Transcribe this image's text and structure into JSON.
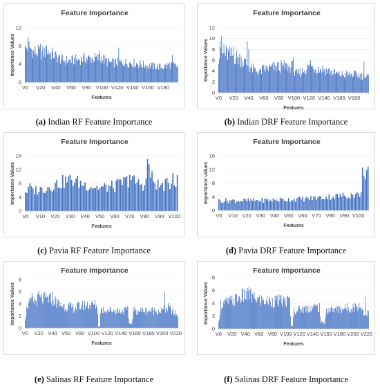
{
  "panels": [
    {
      "caption_letter": "(a)",
      "caption_text": "Indian RF Feature Importance",
      "chart_data": {
        "type": "bar",
        "title": "Feature Importance",
        "xlabel": "Features",
        "ylabel": "Importance Values",
        "ylim": [
          0,
          12
        ],
        "yticks": [
          "0",
          "4",
          "8",
          "12"
        ],
        "xticks": [
          "V0",
          "V20",
          "V40",
          "V60",
          "V80",
          "V100",
          "V120",
          "V140",
          "V160",
          "V180"
        ],
        "n_features": 200,
        "color": "#4472C4",
        "trend": [
          [
            0,
            7.5
          ],
          [
            4,
            8.5
          ],
          [
            10,
            7
          ],
          [
            20,
            6.8
          ],
          [
            30,
            7
          ],
          [
            40,
            6
          ],
          [
            50,
            5
          ],
          [
            60,
            5
          ],
          [
            80,
            5.5
          ],
          [
            100,
            5.5
          ],
          [
            110,
            4.5
          ],
          [
            120,
            4.5
          ],
          [
            140,
            4.5
          ],
          [
            160,
            3.8
          ],
          [
            180,
            3.5
          ],
          [
            190,
            4.2
          ],
          [
            199,
            3.5
          ]
        ],
        "peaks": [
          [
            4,
            10
          ],
          [
            5,
            9
          ],
          [
            20,
            8.5
          ],
          [
            28,
            8
          ],
          [
            97,
            7
          ],
          [
            122,
            7.5
          ],
          [
            192,
            6
          ]
        ]
      }
    },
    {
      "caption_letter": "(b)",
      "caption_text": "Indian DRF Feature Importance",
      "chart_data": {
        "type": "bar",
        "title": "Feature Importance",
        "xlabel": "Features",
        "ylabel": "Importance Values",
        "ylim": [
          0,
          12
        ],
        "yticks": [
          "0",
          "2",
          "4",
          "6",
          "8",
          "10",
          "12"
        ],
        "xticks": [
          "V0",
          "V20",
          "V40",
          "V60",
          "V80",
          "V100",
          "V120",
          "V140",
          "V160",
          "V180"
        ],
        "n_features": 200,
        "color": "#4472C4",
        "trend": [
          [
            0,
            7
          ],
          [
            10,
            7.5
          ],
          [
            20,
            7
          ],
          [
            30,
            6.5
          ],
          [
            37,
            5.5
          ],
          [
            45,
            4.5
          ],
          [
            55,
            4
          ],
          [
            60,
            4.5
          ],
          [
            80,
            5
          ],
          [
            99,
            5
          ],
          [
            101,
            3.5
          ],
          [
            110,
            4
          ],
          [
            120,
            5
          ],
          [
            140,
            4.5
          ],
          [
            160,
            3.5
          ],
          [
            180,
            3.5
          ],
          [
            199,
            3
          ]
        ],
        "peaks": [
          [
            2,
            9.5
          ],
          [
            4,
            10.5
          ],
          [
            7,
            9
          ],
          [
            20,
            8.5
          ],
          [
            38,
            9.5
          ],
          [
            40,
            8
          ],
          [
            99,
            6.5
          ],
          [
            122,
            6
          ],
          [
            193,
            5.8
          ]
        ]
      }
    },
    {
      "caption_letter": "(c)",
      "caption_text": "Pavia RF Feature Importance",
      "chart_data": {
        "type": "bar",
        "title": "Feature Importance",
        "xlabel": "Features",
        "ylabel": "Importance Values",
        "ylim": [
          0,
          16
        ],
        "yticks": [
          "0",
          "4",
          "8",
          "12",
          "16"
        ],
        "xticks": [
          "V0",
          "V10",
          "V20",
          "V30",
          "V40",
          "V50",
          "V60",
          "V70",
          "V80",
          "V90",
          "V100"
        ],
        "n_features": 103,
        "color": "#4472C4",
        "trend": [
          [
            0,
            6
          ],
          [
            10,
            6.5
          ],
          [
            20,
            8
          ],
          [
            30,
            9.5
          ],
          [
            40,
            8
          ],
          [
            50,
            7
          ],
          [
            60,
            7.5
          ],
          [
            70,
            9.5
          ],
          [
            75,
            8.5
          ],
          [
            80,
            8
          ],
          [
            83,
            10
          ],
          [
            86,
            9
          ],
          [
            90,
            7.5
          ],
          [
            100,
            8.5
          ],
          [
            102,
            9
          ]
        ],
        "peaks": [
          [
            3,
            8
          ],
          [
            30,
            10.5
          ],
          [
            70,
            10.5
          ],
          [
            82,
            15
          ],
          [
            83,
            13.5
          ],
          [
            85,
            11.5
          ],
          [
            99,
            11
          ]
        ]
      }
    },
    {
      "caption_letter": "(d)",
      "caption_text": "Pavia DRF Feature Importance",
      "chart_data": {
        "type": "bar",
        "title": "Feature Importance",
        "xlabel": "Features",
        "ylabel": "Importance values",
        "ylim": [
          0,
          16
        ],
        "yticks": [
          "0",
          "4",
          "8",
          "12",
          "16"
        ],
        "xticks": [
          "V0",
          "V10",
          "V20",
          "V30",
          "V40",
          "V50",
          "V60",
          "V70",
          "V80",
          "V90",
          "V100"
        ],
        "n_features": 108,
        "color": "#4472C4",
        "trend": [
          [
            0,
            3
          ],
          [
            20,
            3
          ],
          [
            40,
            3.2
          ],
          [
            60,
            3.5
          ],
          [
            70,
            3.8
          ],
          [
            80,
            4.2
          ],
          [
            90,
            4.5
          ],
          [
            97,
            4.8
          ],
          [
            102,
            5
          ],
          [
            103,
            12
          ],
          [
            107,
            12
          ]
        ],
        "peaks": [
          [
            103,
            12.5
          ],
          [
            107,
            12.8
          ]
        ]
      }
    },
    {
      "caption_letter": "(e)",
      "caption_text": "Salinas RF Feature Importance",
      "chart_data": {
        "type": "bar",
        "title": "Feature Importance",
        "xlabel": "Features",
        "ylabel": "Importance Values",
        "ylim": [
          0,
          8
        ],
        "yticks": [
          "0",
          "2",
          "4",
          "6",
          "8"
        ],
        "xticks": [
          "V0",
          "V20",
          "V40",
          "V60",
          "V80",
          "V100",
          "V120",
          "V140",
          "V160",
          "V180",
          "V200",
          "V220"
        ],
        "n_features": 224,
        "color": "#4472C4",
        "trend": [
          [
            0,
            1.5
          ],
          [
            3,
            4
          ],
          [
            20,
            5
          ],
          [
            40,
            5
          ],
          [
            50,
            4
          ],
          [
            70,
            3.5
          ],
          [
            90,
            4
          ],
          [
            105,
            4
          ],
          [
            107,
            0.3
          ],
          [
            109,
            0.3
          ],
          [
            110,
            3.2
          ],
          [
            140,
            3
          ],
          [
            150,
            3
          ],
          [
            152,
            0.8
          ],
          [
            156,
            0.8
          ],
          [
            158,
            3
          ],
          [
            180,
            3
          ],
          [
            200,
            3
          ],
          [
            210,
            3.5
          ],
          [
            223,
            2
          ]
        ],
        "peaks": [
          [
            10,
            5.8
          ],
          [
            20,
            6.2
          ],
          [
            40,
            6
          ],
          [
            204,
            6
          ]
        ]
      }
    },
    {
      "caption_letter": "(f)",
      "caption_text": "Salinas DRF Feature Importance",
      "chart_data": {
        "type": "bar",
        "title": "Feature Importance",
        "xlabel": "Features",
        "ylabel": "Importance Values",
        "ylim": [
          0,
          8
        ],
        "yticks": [
          "0",
          "2",
          "4",
          "6",
          "8"
        ],
        "xticks": [
          "V0",
          "V20",
          "V40",
          "V60",
          "V80",
          "V100",
          "V120",
          "V140",
          "V160",
          "V180",
          "V200",
          "V220"
        ],
        "n_features": 224,
        "color": "#4472C4",
        "trend": [
          [
            0,
            1
          ],
          [
            3,
            4
          ],
          [
            20,
            4.5
          ],
          [
            40,
            5.5
          ],
          [
            50,
            5
          ],
          [
            70,
            4.5
          ],
          [
            100,
            4.5
          ],
          [
            106,
            4.5
          ],
          [
            108,
            0.5
          ],
          [
            110,
            0.5
          ],
          [
            112,
            3
          ],
          [
            140,
            3.5
          ],
          [
            150,
            3.5
          ],
          [
            152,
            1
          ],
          [
            158,
            1
          ],
          [
            160,
            3
          ],
          [
            200,
            3.5
          ],
          [
            210,
            3.8
          ],
          [
            218,
            2.5
          ],
          [
            223,
            2.5
          ]
        ],
        "peaks": [
          [
            45,
            6.5
          ],
          [
            48,
            6.3
          ],
          [
            218,
            5
          ]
        ]
      }
    }
  ]
}
